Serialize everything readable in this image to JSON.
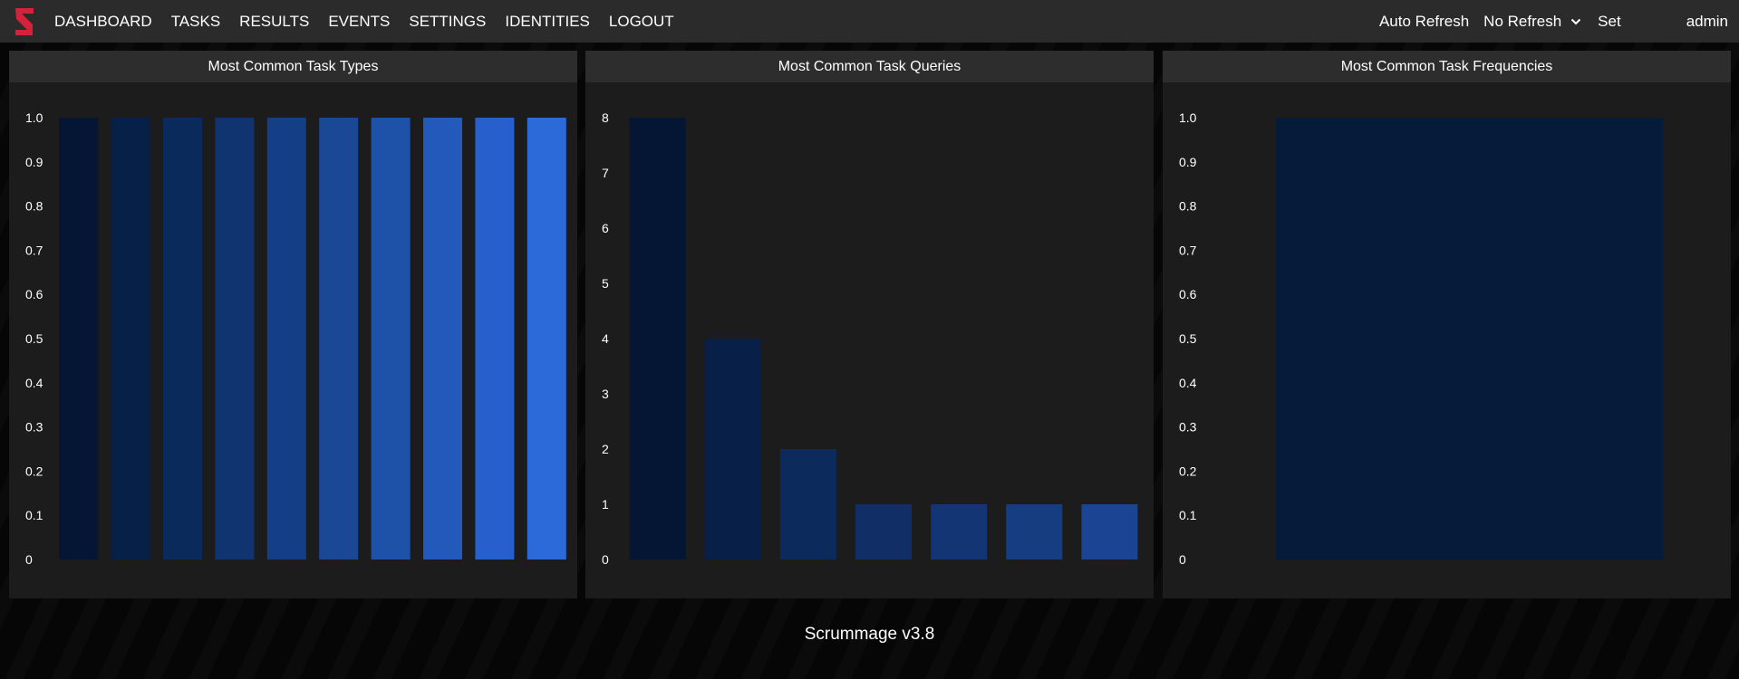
{
  "navbar": {
    "logo": "scrummage-logo-icon",
    "links": [
      "DASHBOARD",
      "TASKS",
      "RESULTS",
      "EVENTS",
      "SETTINGS",
      "IDENTITIES",
      "LOGOUT"
    ],
    "auto_refresh_label": "Auto Refresh",
    "refresh_option": "No Refresh",
    "set_label": "Set",
    "user": "admin"
  },
  "panels": [
    {
      "title": "Most Common Task Types"
    },
    {
      "title": "Most Common Task Queries"
    },
    {
      "title": "Most Common Task Frequencies"
    }
  ],
  "chart_data": [
    {
      "type": "bar",
      "title": "Most Common Task Types",
      "values": [
        1,
        1,
        1,
        1,
        1,
        1,
        1,
        1,
        1,
        1
      ],
      "ylim": [
        0,
        1
      ],
      "yticks": [
        "0",
        "0.1",
        "0.2",
        "0.3",
        "0.4",
        "0.5",
        "0.6",
        "0.7",
        "0.8",
        "0.9",
        "1.0"
      ],
      "colors": [
        "#041633",
        "#062048",
        "#0a2a5c",
        "#0f3470",
        "#143e85",
        "#1a4895",
        "#1e52a8",
        "#2259bb",
        "#2760cc",
        "#2c6ad9"
      ],
      "grid": false,
      "legend": "none"
    },
    {
      "type": "bar",
      "title": "Most Common Task Queries",
      "values": [
        8,
        4,
        2,
        1,
        1,
        1,
        1
      ],
      "ylim": [
        0,
        8
      ],
      "yticks": [
        "0",
        "1",
        "2",
        "3",
        "4",
        "5",
        "6",
        "7",
        "8"
      ],
      "colors": [
        "#041633",
        "#082048",
        "#0c2a5c",
        "#112f66",
        "#133573",
        "#163d80",
        "#1b4592"
      ],
      "grid": false,
      "legend": "none"
    },
    {
      "type": "bar",
      "title": "Most Common Task Frequencies",
      "values": [
        1
      ],
      "ylim": [
        0,
        1
      ],
      "yticks": [
        "0",
        "0.1",
        "0.2",
        "0.3",
        "0.4",
        "0.5",
        "0.6",
        "0.7",
        "0.8",
        "0.9",
        "1.0"
      ],
      "colors": [
        "#061a3a"
      ],
      "grid": false,
      "legend": "none"
    }
  ],
  "footer": {
    "version": "Scrummage v3.8"
  }
}
